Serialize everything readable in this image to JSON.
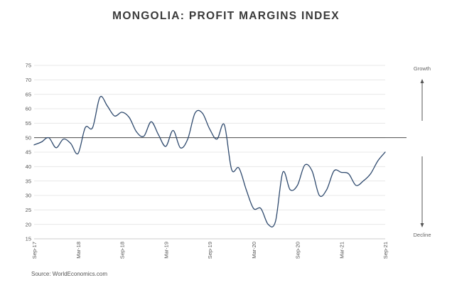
{
  "chart_data": {
    "type": "line",
    "title": "MONGOLIA: PROFIT MARGINS INDEX",
    "xlabel": "",
    "ylabel": "",
    "ylim": [
      15,
      75
    ],
    "yticks": [
      15,
      20,
      25,
      30,
      35,
      40,
      45,
      50,
      55,
      60,
      65,
      70,
      75
    ],
    "xticks": [
      "Sep-17",
      "Mar-18",
      "Sep-18",
      "Mar-19",
      "Sep-19",
      "Mar-20",
      "Sep-20",
      "Mar-21",
      "Sep-21"
    ],
    "x": [
      "Sep-17",
      "Oct-17",
      "Nov-17",
      "Dec-17",
      "Jan-18",
      "Feb-18",
      "Mar-18",
      "Apr-18",
      "May-18",
      "Jun-18",
      "Jul-18",
      "Aug-18",
      "Sep-18",
      "Oct-18",
      "Nov-18",
      "Dec-18",
      "Jan-19",
      "Feb-19",
      "Mar-19",
      "Apr-19",
      "May-19",
      "Jun-19",
      "Jul-19",
      "Aug-19",
      "Sep-19",
      "Oct-19",
      "Nov-19",
      "Dec-19",
      "Jan-20",
      "Feb-20",
      "Mar-20",
      "Apr-20",
      "May-20",
      "Jun-20",
      "Jul-20",
      "Aug-20",
      "Sep-20",
      "Oct-20",
      "Nov-20",
      "Dec-20",
      "Jan-21",
      "Feb-21",
      "Mar-21",
      "Apr-21",
      "May-21",
      "Jun-21",
      "Jul-21",
      "Aug-21",
      "Sep-21"
    ],
    "series": [
      {
        "name": "Profit Margins Index",
        "values": [
          47.5,
          48.5,
          50,
          46.5,
          49.5,
          48,
          44.5,
          53.5,
          53.5,
          64,
          61,
          57.5,
          58.8,
          57,
          52,
          50.5,
          55.5,
          51,
          47,
          52.5,
          46.5,
          49.5,
          58.5,
          58.5,
          53,
          49.5,
          54.5,
          39,
          39.5,
          32,
          25.5,
          25.5,
          20,
          21,
          38,
          32,
          33.5,
          40.5,
          38.5,
          30,
          32,
          38.5,
          38,
          37.5,
          33.5,
          35,
          37.5,
          42,
          45
        ]
      }
    ],
    "reference_line": 50,
    "grid": true,
    "legend": "none"
  },
  "side_labels": {
    "growth": "Growth",
    "decline": "Decline"
  },
  "source": "Source: WorldEconomics.com",
  "colors": {
    "line": "#2f4a6e",
    "grid": "#e3e3e3",
    "reference": "#333333",
    "arrow": "#555555"
  }
}
